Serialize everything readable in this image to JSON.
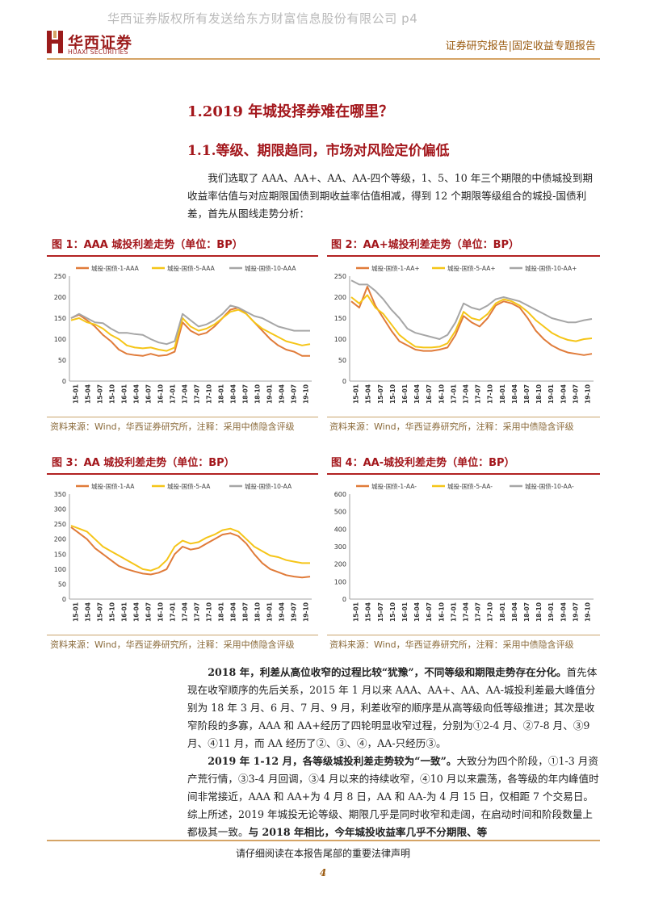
{
  "watermark": "华西证券版权所有发送给东方财富信息股份有限公司 p4",
  "logo": {
    "cn": "华西证券",
    "en": "HUAXI SECURITIES"
  },
  "header": {
    "right": "证券研究报告|固定收益专题报告"
  },
  "heading1": "1.2019 年城投择券难在哪里？",
  "heading2": "1.1.等级、期限趋同，市场对风险定价偏低",
  "intro": "我们选取了 AAA、AA+、AA、AA-四个等级，1、5、10 年三个期限的中债城投到期收益率估值与对应期限国债到期收益率估值相减，得到 12 个期限等级组合的城投-国债利差，首先从图线走势分析：",
  "source_note": "资料来源：Wind，华西证券研究所，注释：采用中债隐含评级",
  "colors": {
    "s1": "#e07b39",
    "s5": "#f5c518",
    "s10": "#a6a6a6",
    "accent": "#a3161b"
  },
  "chart_data": [
    {
      "type": "line",
      "title": "图 1：AAA 城投利差走势（单位：BP）",
      "ylim": [
        0,
        250
      ],
      "yticks": [
        0,
        50,
        100,
        150,
        200,
        250
      ],
      "xticks": [
        "15-01",
        "15-04",
        "15-07",
        "15-10",
        "16-01",
        "16-04",
        "16-07",
        "16-10",
        "17-01",
        "17-04",
        "17-07",
        "17-10",
        "18-01",
        "18-04",
        "18-07",
        "18-10",
        "19-01",
        "19-04",
        "19-07",
        "19-10"
      ],
      "series": [
        {
          "name": "城投-国债-1-AAA",
          "color": "s1",
          "values": [
            150,
            158,
            145,
            130,
            110,
            95,
            75,
            65,
            62,
            60,
            65,
            60,
            62,
            70,
            140,
            120,
            110,
            115,
            130,
            150,
            170,
            175,
            160,
            140,
            120,
            100,
            85,
            75,
            70,
            60,
            60
          ]
        },
        {
          "name": "城投-国债-5-AAA",
          "color": "s5",
          "values": [
            145,
            150,
            140,
            135,
            125,
            110,
            100,
            85,
            80,
            78,
            80,
            75,
            72,
            80,
            150,
            130,
            120,
            125,
            135,
            150,
            165,
            170,
            160,
            140,
            125,
            115,
            105,
            95,
            90,
            85,
            88
          ]
        },
        {
          "name": "城投-国债-10-AAA",
          "color": "s10",
          "values": [
            150,
            160,
            150,
            140,
            138,
            125,
            115,
            115,
            112,
            110,
            100,
            92,
            88,
            95,
            160,
            145,
            130,
            135,
            145,
            160,
            180,
            175,
            165,
            155,
            150,
            140,
            130,
            125,
            120,
            120,
            120
          ]
        }
      ]
    },
    {
      "type": "line",
      "title": "图 2：AA+城投利差走势（单位：BP）",
      "ylim": [
        0,
        250
      ],
      "yticks": [
        0,
        50,
        100,
        150,
        200,
        250
      ],
      "xticks": [
        "15-01",
        "15-04",
        "15-07",
        "15-10",
        "16-01",
        "16-04",
        "16-07",
        "16-10",
        "17-01",
        "17-04",
        "17-07",
        "17-10",
        "18-01",
        "18-04",
        "18-07",
        "18-10",
        "19-01",
        "19-04",
        "19-07",
        "19-10"
      ],
      "series": [
        {
          "name": "城投-国债-1-AA+",
          "color": "s1",
          "values": [
            190,
            175,
            225,
            180,
            150,
            120,
            95,
            85,
            75,
            72,
            72,
            75,
            80,
            110,
            155,
            140,
            130,
            150,
            180,
            190,
            185,
            175,
            150,
            120,
            100,
            85,
            75,
            68,
            65,
            62,
            65
          ]
        },
        {
          "name": "城投-国债-5-AA+",
          "color": "s5",
          "values": [
            200,
            185,
            205,
            175,
            160,
            135,
            110,
            95,
            82,
            80,
            80,
            82,
            90,
            120,
            165,
            150,
            145,
            160,
            185,
            195,
            190,
            180,
            165,
            145,
            130,
            115,
            105,
            98,
            95,
            100,
            102
          ]
        },
        {
          "name": "城投-国债-10-AA+",
          "color": "s10",
          "values": [
            240,
            230,
            230,
            215,
            195,
            170,
            150,
            125,
            115,
            110,
            105,
            100,
            110,
            140,
            185,
            175,
            170,
            180,
            195,
            200,
            195,
            190,
            180,
            170,
            160,
            150,
            145,
            140,
            140,
            145,
            148
          ]
        }
      ]
    },
    {
      "type": "line",
      "title": "图 3：AA 城投利差走势（单位：BP）",
      "ylim": [
        0,
        350
      ],
      "yticks": [
        0,
        50,
        100,
        150,
        200,
        250,
        300,
        350
      ],
      "xticks": [
        "15-01",
        "15-04",
        "15-07",
        "15-10",
        "16-01",
        "16-04",
        "16-07",
        "16-10",
        "17-01",
        "17-04",
        "17-07",
        "17-10",
        "18-01",
        "18-04",
        "18-07",
        "18-10",
        "19-01",
        "19-04",
        "19-07",
        "19-10"
      ],
      "series": [
        {
          "name": "城投-国债-1-AA",
          "color": "s1",
          "values": [
            240,
            220,
            200,
            170,
            150,
            130,
            110,
            100,
            92,
            85,
            82,
            88,
            100,
            150,
            175,
            165,
            170,
            185,
            200,
            215,
            220,
            210,
            185,
            150,
            120,
            100,
            90,
            80,
            75,
            72,
            75
          ]
        },
        {
          "name": "城投-国债-5-AA",
          "color": "s5",
          "values": [
            245,
            235,
            225,
            200,
            175,
            160,
            145,
            130,
            115,
            100,
            95,
            105,
            130,
            175,
            195,
            185,
            190,
            205,
            215,
            230,
            235,
            225,
            200,
            175,
            160,
            145,
            140,
            130,
            125,
            120,
            120
          ]
        },
        {
          "name": "城投-国债-10-AA",
          "color": "s10",
          "values": []
        }
      ]
    },
    {
      "type": "line",
      "title": "图 4：AA-城投利差走势（单位：BP）",
      "ylim": [
        0,
        600
      ],
      "yticks": [
        0,
        100,
        200,
        300,
        400,
        500,
        600
      ],
      "xticks": [
        "15-01",
        "15-04",
        "15-07",
        "15-10",
        "16-01",
        "16-04",
        "16-07",
        "16-10",
        "17-01",
        "17-04",
        "17-07",
        "17-10",
        "18-01",
        "18-04",
        "18-07",
        "18-10",
        "19-01",
        "19-04",
        "19-07",
        "19-10"
      ],
      "series": [
        {
          "name": "城投-国债-1-AA-",
          "color": "s1",
          "values": []
        },
        {
          "name": "城投-国债-5-AA-",
          "color": "s5",
          "values": []
        },
        {
          "name": "城投-国债-10-AA-",
          "color": "s10",
          "values": []
        }
      ]
    }
  ],
  "para1": {
    "lead": "2018 年，利差从高位收窄的过程比较“犹豫”，不同等级和期限走势存在分化。",
    "body": "首先体现在收窄顺序的先后关系，2015 年 1 月以来 AAA、AA+、AA、AA-城投利差最大峰值分别为 18 年 3 月、6 月、7 月、9 月，利差收窄的顺序是从高等级向低等级推进；其次是收窄阶段的多寡，AAA 和 AA+经历了四轮明显收窄过程，分别为①2-4 月、②7-8 月、③9 月、④11 月，而 AA 经历了②、③、④，AA-只经历③。"
  },
  "para2": {
    "lead": "2019 年 1-12 月，各等级城投利差走势较为“一致”。",
    "body": "大致分为四个阶段，①1-3 月资产荒行情，③3-4 月回调，③4 月以来的持续收窄，④10 月以来震荡，各等级的年内峰值时间非常接近，AAA 和 AA+为 4 月 8 日，AA 和 AA-为 4 月 15 日，仅相距 7 个交易日。综上所述，2019 年城投无论等级、期限几乎是同时收窄和走阔，在启动时间和阶段数量上都极其一致。",
    "tail": "与 2018 年相比，今年城投收益率几乎不分期限、等"
  },
  "footer": "请仔细阅读在本报告尾部的重要法律声明",
  "page_number": "4"
}
